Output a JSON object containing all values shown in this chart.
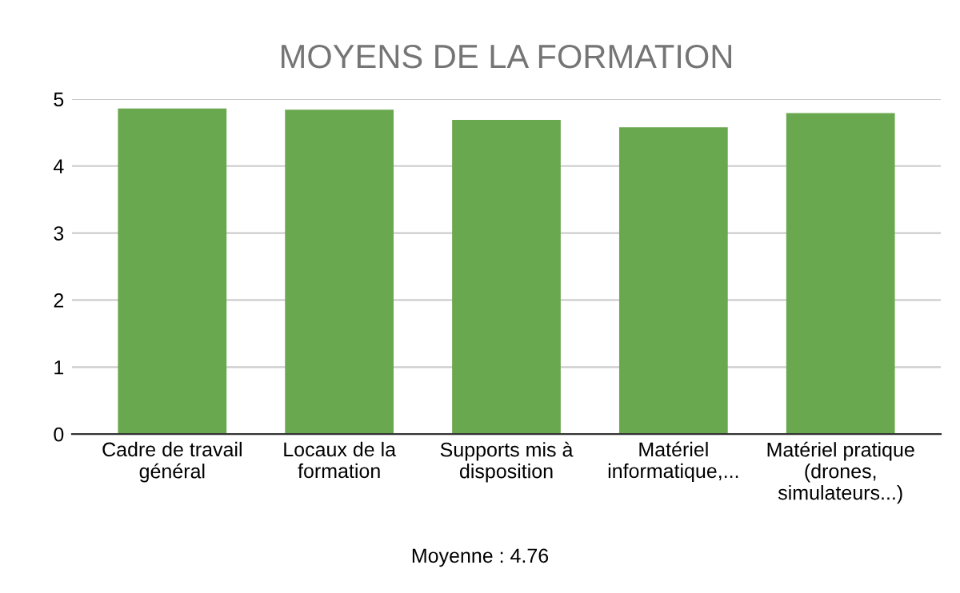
{
  "chart_data": {
    "type": "bar",
    "title": "MOYENS DE LA FORMATION",
    "categories": [
      "Cadre de travail\ngénéral",
      "Locaux de la\nformation",
      "Supports mis à\ndisposition",
      "Matériel\ninformatique,...",
      "Matériel pratique\n(drones,\nsimulateurs...)"
    ],
    "values": [
      4.86,
      4.84,
      4.69,
      4.58,
      4.79
    ],
    "color": "#6aa84f",
    "ylim": [
      0,
      5
    ],
    "yticks": [
      0,
      1,
      2,
      3,
      4,
      5
    ],
    "grid": "y",
    "annotations": [
      "Moyenne : 4.76"
    ]
  }
}
